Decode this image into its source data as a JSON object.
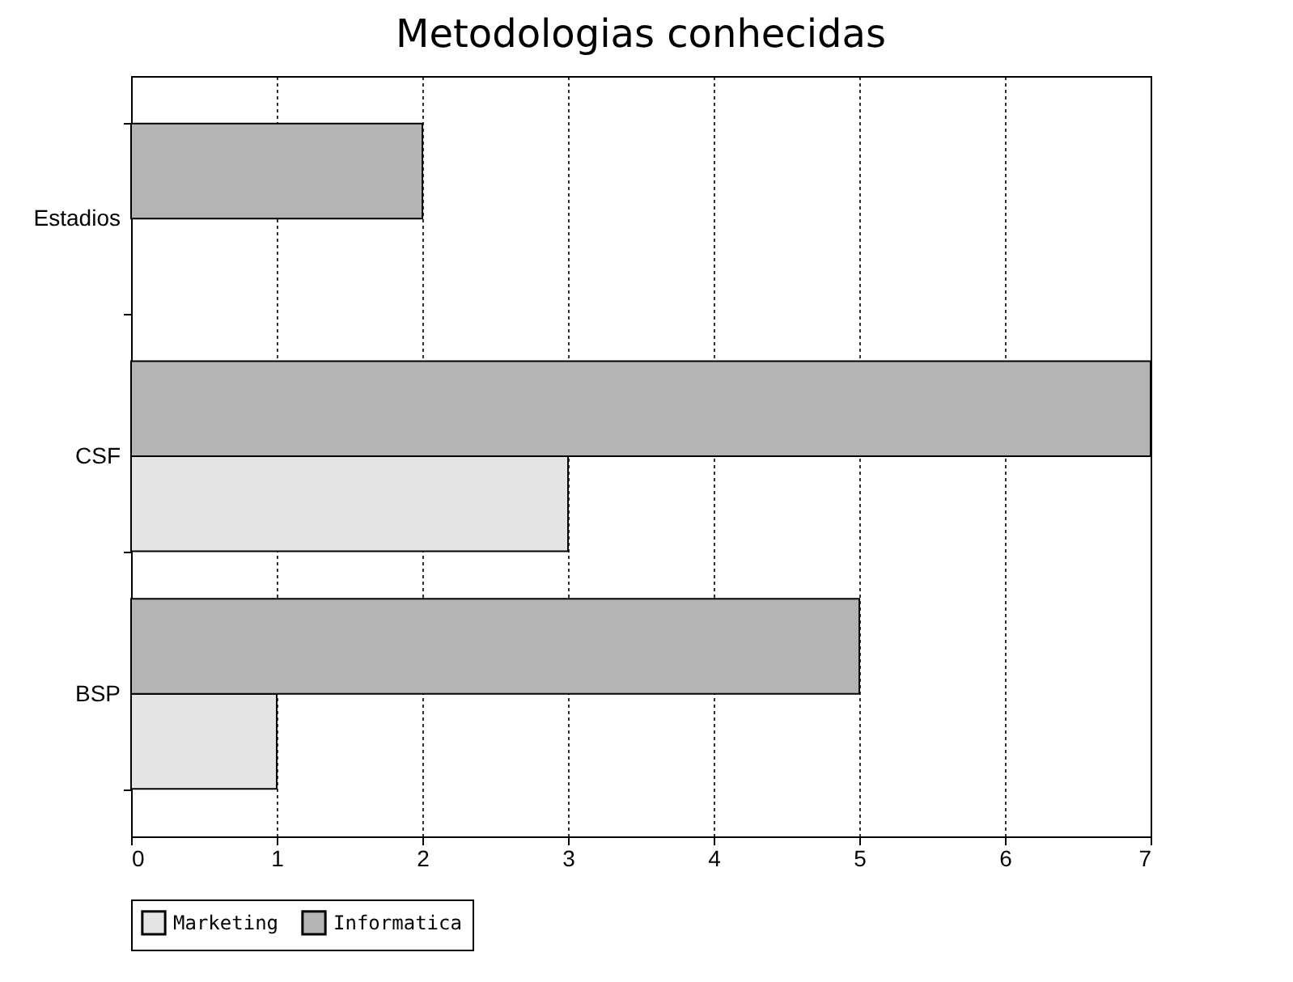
{
  "chart_data": {
    "type": "bar",
    "orientation": "horizontal",
    "title": "Metodologias conhecidas",
    "categories": [
      "Estadios",
      "CSF",
      "BSP"
    ],
    "series": [
      {
        "name": "Marketing",
        "color": "#e4e4e4",
        "values": [
          null,
          3,
          1
        ]
      },
      {
        "name": "Informatica",
        "color": "#b4b4b4",
        "values": [
          2,
          7,
          5
        ]
      }
    ],
    "xlim": [
      0,
      7
    ],
    "xticks": [
      0,
      1,
      2,
      3,
      4,
      5,
      6,
      7
    ],
    "grid": "x",
    "legend": "bottom"
  }
}
